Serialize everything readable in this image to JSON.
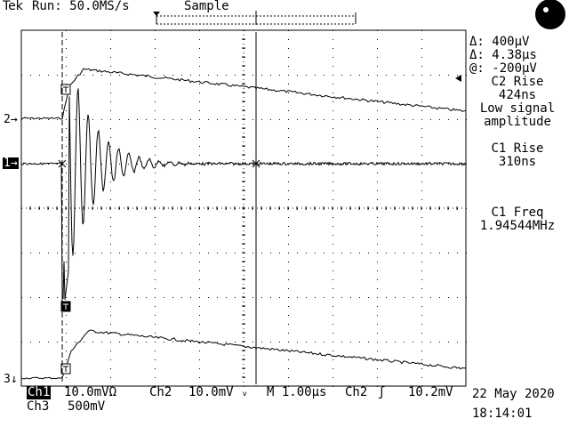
{
  "header": {
    "brand": "Tek",
    "run_status": "Run: 50.0MS/s",
    "acq_mode": "Sample"
  },
  "cursors": {
    "delta_v": "Δ: 400μV",
    "delta_t": "Δ: 4.38μs",
    "at_v": "@: -200μV"
  },
  "measurements": [
    {
      "name": "C2 Rise",
      "value": "424ns",
      "note1": "Low signal",
      "note2": "amplitude"
    },
    {
      "name": "C1 Rise",
      "value": "310ns"
    },
    {
      "name": "C1 Freq",
      "value": "1.94544MHz"
    }
  ],
  "channel_markers": {
    "ch2": "2",
    "ch1": "1",
    "ch3": "3"
  },
  "status_bar": {
    "ch1_label": "Ch1",
    "ch1_scale": "10.0mVΩ",
    "ch2_label": "Ch2",
    "ch2_scale": "10.0mV",
    "timebase": "M 1.00μs",
    "trig_source": "Ch2",
    "trig_level": "10.2mV",
    "ch3_label": "Ch3",
    "ch3_scale": "500mV",
    "date": "22 May 2020",
    "time": "18:14:01"
  }
}
